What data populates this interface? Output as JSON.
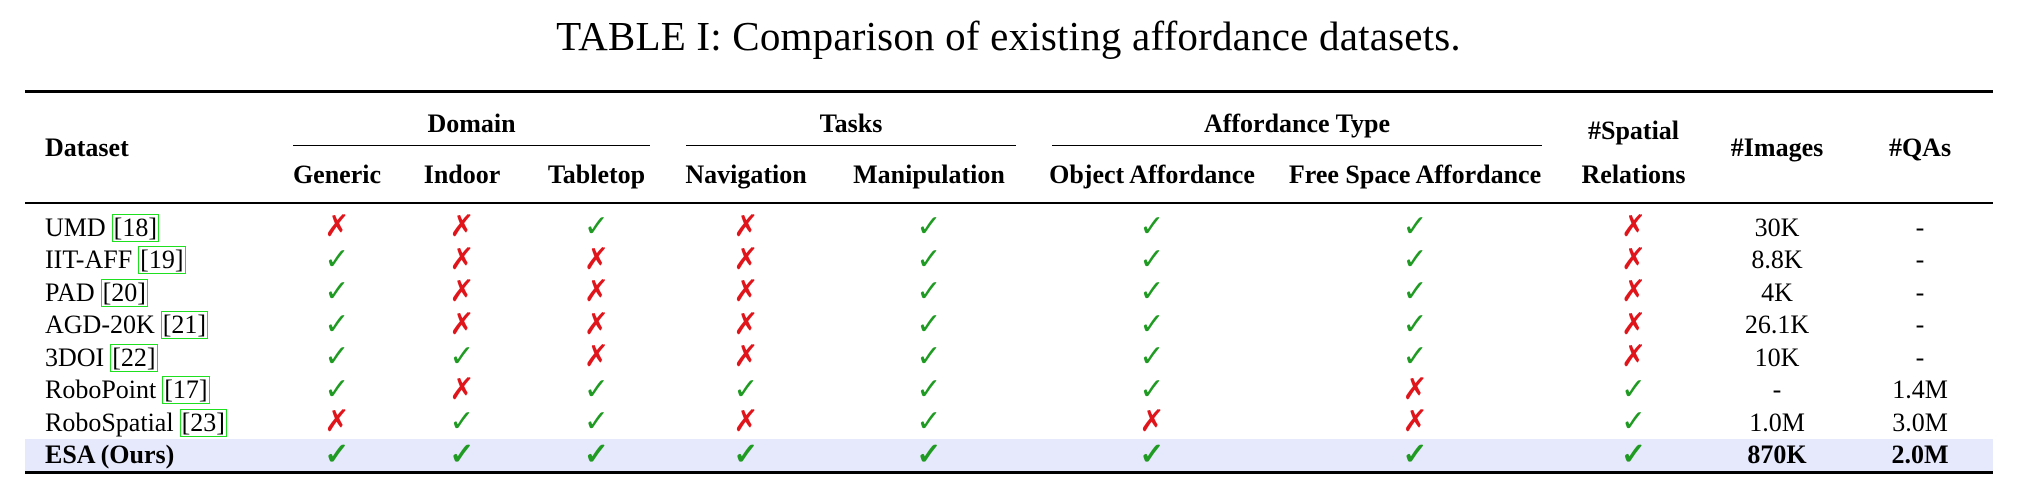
{
  "caption": "TABLE I: Comparison of existing affordance datasets.",
  "header": {
    "dataset": "Dataset",
    "domain": "Domain",
    "tasks": "Tasks",
    "affordance_type": "Affordance Type",
    "spatial_1": "#Spatial",
    "spatial_2": "Relations",
    "images": "#Images",
    "qas": "#QAs",
    "generic": "Generic",
    "indoor": "Indoor",
    "tabletop": "Tabletop",
    "navigation": "Navigation",
    "manipulation": "Manipulation",
    "object_affordance": "Object Affordance",
    "free_space_affordance": "Free Space Affordance"
  },
  "marks": {
    "yes": "✓",
    "no": "✗"
  },
  "colors": {
    "yes": "#1f9a22",
    "no": "#e0151b",
    "ref_box": "#1ee01e",
    "highlight": "#e6e8fb"
  },
  "rows": [
    {
      "name": "UMD",
      "ref": "[18]",
      "generic": "no",
      "indoor": "no",
      "tabletop": "yes",
      "navigation": "no",
      "manipulation": "yes",
      "object": "yes",
      "free_space": "yes",
      "spatial": "no",
      "images": "30K",
      "qas": "-"
    },
    {
      "name": "IIT-AFF",
      "ref": "[19]",
      "generic": "yes",
      "indoor": "no",
      "tabletop": "no",
      "navigation": "no",
      "manipulation": "yes",
      "object": "yes",
      "free_space": "yes",
      "spatial": "no",
      "images": "8.8K",
      "qas": "-"
    },
    {
      "name": "PAD",
      "ref": "[20]",
      "generic": "yes",
      "indoor": "no",
      "tabletop": "no",
      "navigation": "no",
      "manipulation": "yes",
      "object": "yes",
      "free_space": "yes",
      "spatial": "no",
      "images": "4K",
      "qas": "-"
    },
    {
      "name": "AGD-20K",
      "ref": "[21]",
      "generic": "yes",
      "indoor": "no",
      "tabletop": "no",
      "navigation": "no",
      "manipulation": "yes",
      "object": "yes",
      "free_space": "yes",
      "spatial": "no",
      "images": "26.1K",
      "qas": "-"
    },
    {
      "name": "3DOI",
      "ref": "[22]",
      "generic": "yes",
      "indoor": "yes",
      "tabletop": "no",
      "navigation": "no",
      "manipulation": "yes",
      "object": "yes",
      "free_space": "yes",
      "spatial": "no",
      "images": "10K",
      "qas": "-"
    },
    {
      "name": "RoboPoint",
      "ref": "[17]",
      "generic": "yes",
      "indoor": "no",
      "tabletop": "yes",
      "navigation": "yes",
      "manipulation": "yes",
      "object": "yes",
      "free_space": "no",
      "spatial": "yes",
      "images": "-",
      "qas": "1.4M"
    },
    {
      "name": "RoboSpatial",
      "ref": "[23]",
      "generic": "no",
      "indoor": "yes",
      "tabletop": "yes",
      "navigation": "no",
      "manipulation": "yes",
      "object": "no",
      "free_space": "no",
      "spatial": "yes",
      "images": "1.0M",
      "qas": "3.0M"
    },
    {
      "name": "ESA (Ours)",
      "ref": "",
      "generic": "yes",
      "indoor": "yes",
      "tabletop": "yes",
      "navigation": "yes",
      "manipulation": "yes",
      "object": "yes",
      "free_space": "yes",
      "spatial": "yes",
      "images": "870K",
      "qas": "2.0M"
    }
  ]
}
